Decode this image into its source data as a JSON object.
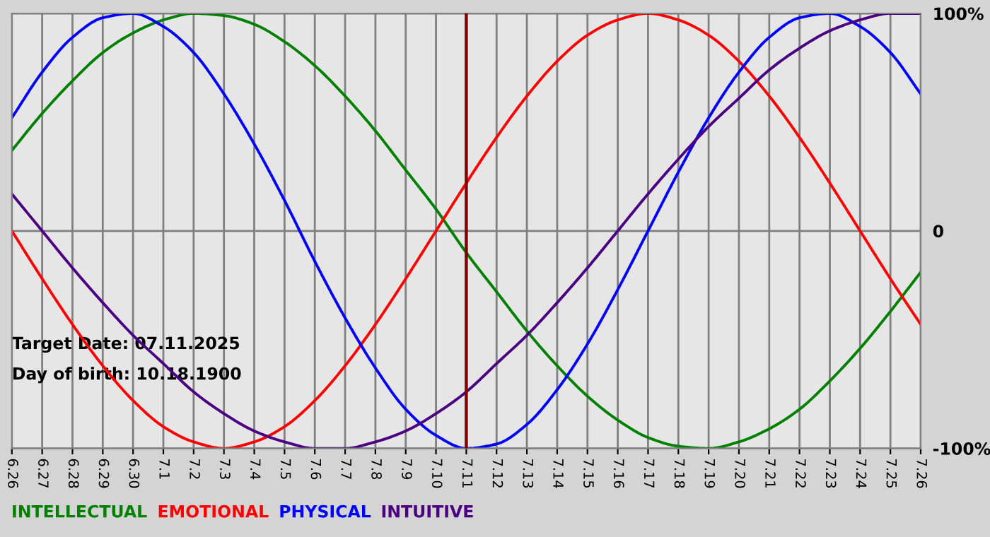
{
  "chart_data": {
    "type": "line",
    "categories": [
      "6.26",
      "6.27",
      "6.28",
      "6.29",
      "6.30",
      "7.1",
      "7.2",
      "7.3",
      "7.4",
      "7.5",
      "7.6",
      "7.7",
      "7.8",
      "7.9",
      "7.10",
      "7.11",
      "7.12",
      "7.13",
      "7.14",
      "7.15",
      "7.16",
      "7.17",
      "7.18",
      "7.19",
      "7.20",
      "7.21",
      "7.22",
      "7.23",
      "7.24",
      "7.25",
      "7.26"
    ],
    "series": [
      {
        "name": "INTELLECTUAL",
        "color": "#008000",
        "values": [
          37,
          54,
          69,
          82,
          91,
          97,
          100,
          99,
          95,
          87,
          76,
          62,
          46,
          28,
          10,
          -10,
          -28,
          -46,
          -62,
          -76,
          -87,
          -95,
          -99,
          -100,
          -97,
          -91,
          -82,
          -69,
          -54,
          -37,
          -19
        ]
      },
      {
        "name": "EMOTIONAL",
        "color": "#ff0000",
        "values": [
          0,
          -22,
          -43,
          -62,
          -78,
          -90,
          -97,
          -100,
          -97,
          -90,
          -78,
          -62,
          -43,
          -22,
          0,
          22,
          43,
          62,
          78,
          90,
          97,
          100,
          97,
          90,
          78,
          62,
          43,
          22,
          0,
          -22,
          -43
        ]
      },
      {
        "name": "PHYSICAL",
        "color": "#0000ff",
        "values": [
          52,
          73,
          89,
          98,
          100,
          94,
          82,
          63,
          40,
          14,
          -14,
          -40,
          -63,
          -82,
          -94,
          -100,
          -98,
          -89,
          -73,
          -52,
          -27,
          0,
          27,
          52,
          73,
          89,
          98,
          100,
          94,
          82,
          63
        ]
      },
      {
        "name": "INTUITIVE",
        "color": "#4b0082",
        "values": [
          17,
          0,
          -17,
          -33,
          -48,
          -61,
          -74,
          -84,
          -92,
          -97,
          -100,
          -100,
          -97,
          -92,
          -84,
          -74,
          -61,
          -48,
          -33,
          -17,
          0,
          17,
          33,
          48,
          61,
          74,
          84,
          92,
          97,
          100,
          100
        ]
      }
    ],
    "ylim": [
      -100,
      100
    ],
    "yticks": [
      {
        "value": -100,
        "label": "-100%"
      },
      0,
      {
        "value": 100,
        "label": "100%"
      }
    ],
    "ref_lines": [
      {
        "axis": "x",
        "value": "7.11",
        "color": "#800000"
      }
    ],
    "annotations": [
      "Target Date: 07.11.2025",
      "Day of birth: 10.18.1900"
    ],
    "grid": true,
    "legend": "bottom"
  }
}
